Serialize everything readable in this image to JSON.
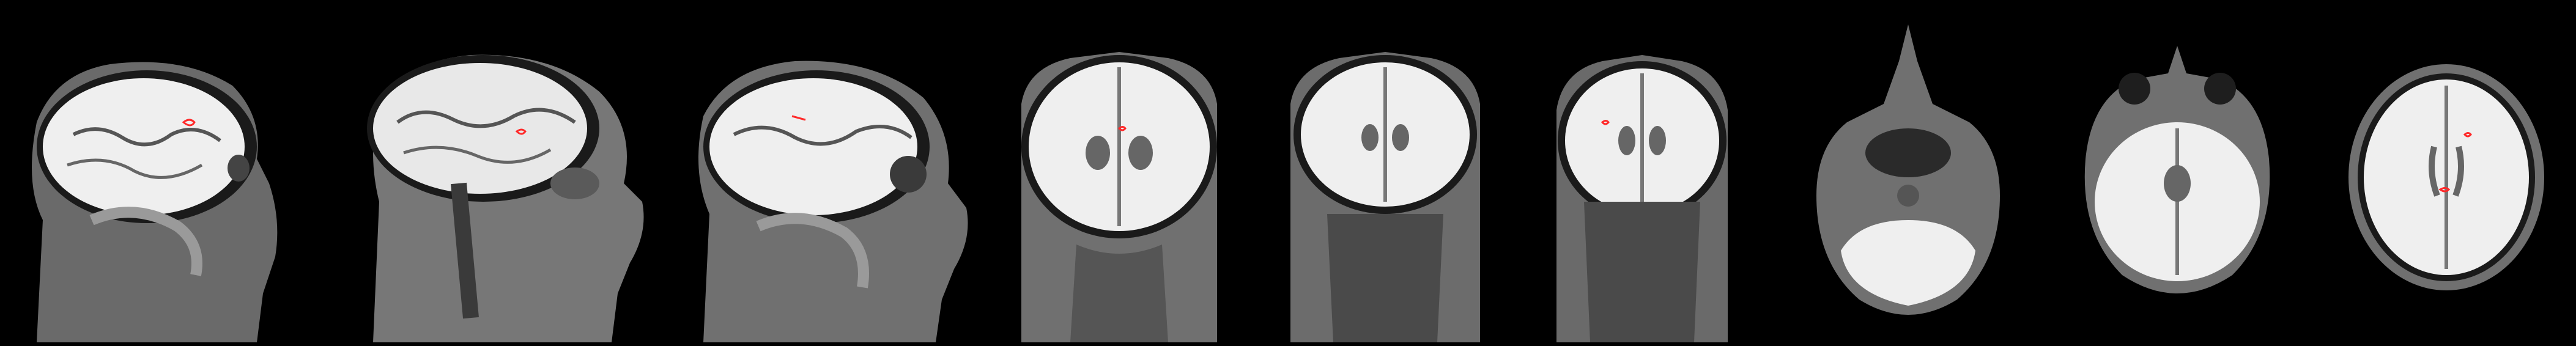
{
  "image": {
    "description_type": "mri-montage",
    "panels": [
      {
        "view": "sagittal"
      },
      {
        "view": "sagittal"
      },
      {
        "view": "sagittal"
      },
      {
        "view": "coronal"
      },
      {
        "view": "coronal"
      },
      {
        "view": "coronal"
      },
      {
        "view": "axial"
      },
      {
        "view": "axial"
      },
      {
        "view": "axial"
      }
    ],
    "colors": {
      "background": "#000000",
      "tissue_bright": "#f2f2f2",
      "tissue_gray": "#8a8a8a",
      "lesion_outline": "#ff2a2a"
    }
  }
}
